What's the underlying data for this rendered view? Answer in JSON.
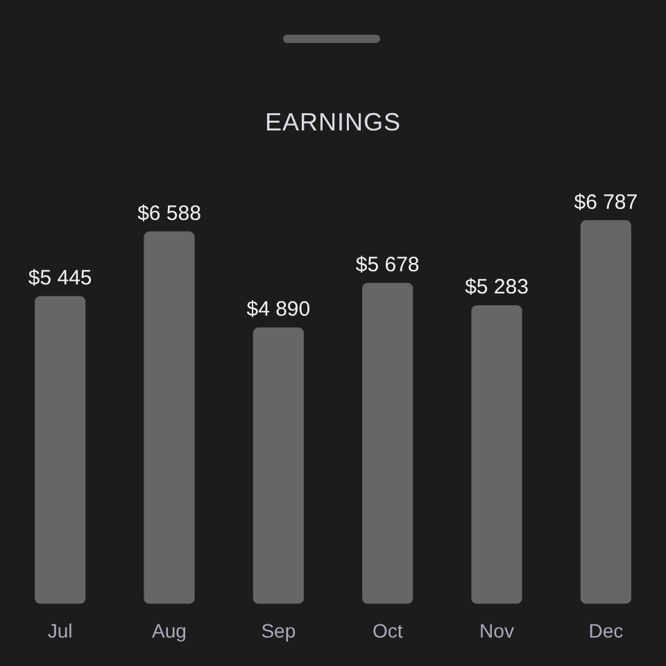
{
  "chart_data": {
    "type": "bar",
    "title": "EARNINGS",
    "categories": [
      "Jul",
      "Aug",
      "Sep",
      "Oct",
      "Nov",
      "Dec"
    ],
    "values": [
      5445,
      6588,
      4890,
      5678,
      5283,
      6787
    ],
    "value_labels": [
      "$5 445",
      "$6 588",
      "$4 890",
      "$5 678",
      "$5 283",
      "$6 787"
    ],
    "color": "#666666",
    "tick_labels": "x",
    "grid": false,
    "legend": false
  }
}
